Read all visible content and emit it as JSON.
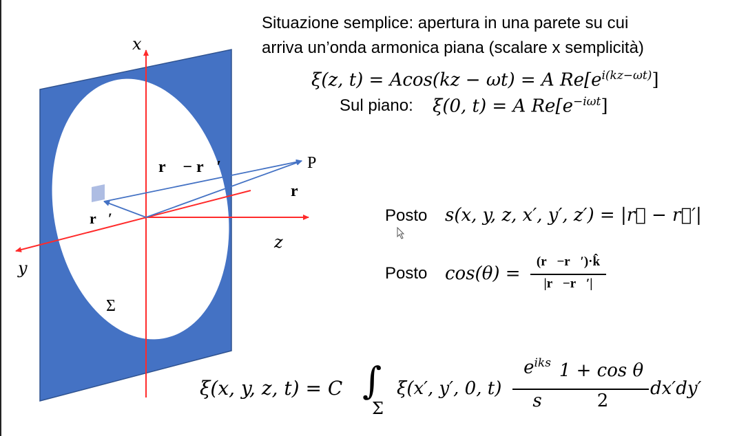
{
  "colors": {
    "plane": "#4472c4",
    "axis": "#ff2a2a",
    "vector": "#4472c4",
    "aperture": "#ffffff",
    "source_patch": "#aebde3"
  },
  "labels": {
    "x_axis": "x",
    "y_axis": "y",
    "z_axis": "z",
    "point": "P",
    "diff_vector": "r⃗ − r⃗′",
    "r_vector": "r⃗",
    "r_prime_vector": "r⃗′",
    "aperture": "Σ"
  },
  "text": {
    "intro_line1": "Situazione semplice: apertura in una parete su cui",
    "intro_line2": "arriva un’onda armonica piana (scalare x semplicità)",
    "wave_lhs": "ξ(z, t) = Acos(kz − ωt) = A Re[e",
    "wave_exp": "i(kz−ωt)",
    "wave_close": "]",
    "plane_label": "Sul piano:",
    "plane_lhs": "ξ(0, t) = A Re[e",
    "plane_exp": "−iωt",
    "plane_close": "]",
    "posto1_label": "Posto",
    "posto1_expr": "s(x, y, z, x′, y′, z′) = |r⃗ − r⃗′|",
    "posto2_label": "Posto",
    "posto2_lhs": "cos(θ) =",
    "posto2_num": "(r⃗−r⃗′)·k̂",
    "posto2_den": "|r⃗−r⃗′|",
    "main_lhs": "ξ(x, y, z, t) = C",
    "main_integral": "∫",
    "main_sub": "Σ",
    "main_integrand": "ξ(x′, y′, 0, t)",
    "frac1_num": "e",
    "frac1_num_exp": "iks",
    "frac1_den": "s",
    "frac2_num": "1 + cos θ",
    "frac2_den": "2",
    "main_tail": "dx′dy′"
  }
}
